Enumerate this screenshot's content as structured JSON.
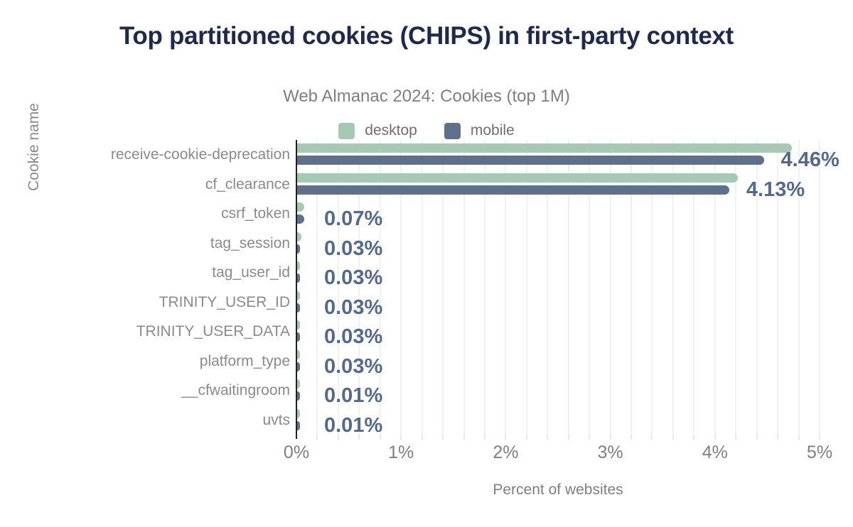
{
  "chart_data": {
    "type": "bar",
    "orientation": "horizontal",
    "title": "Top partitioned cookies (CHIPS) in first-party context",
    "subtitle": "Web Almanac 2024: Cookies (top 1M)",
    "xlabel": "Percent of websites",
    "ylabel": "Cookie name",
    "xlim": [
      0,
      5
    ],
    "x_ticks": [
      "0%",
      "1%",
      "2%",
      "3%",
      "4%",
      "5%"
    ],
    "minor_grid_step_pct": 0.2,
    "grid": true,
    "legend_position": "top-center",
    "legend": [
      {
        "name": "desktop",
        "color": "#a6c9b5"
      },
      {
        "name": "mobile",
        "color": "#5e708a"
      }
    ],
    "categories": [
      "receive-cookie-deprecation",
      "cf_clearance",
      "csrf_token",
      "tag_session",
      "tag_user_id",
      "TRINITY_USER_ID",
      "TRINITY_USER_DATA",
      "platform_type",
      "__cfwaitingroom",
      "uvts"
    ],
    "series": [
      {
        "name": "desktop",
        "values": [
          4.73,
          4.21,
          0.07,
          0.04,
          0.03,
          0.03,
          0.03,
          0.03,
          0.01,
          0.01
        ]
      },
      {
        "name": "mobile",
        "values": [
          4.46,
          4.13,
          0.07,
          0.03,
          0.03,
          0.03,
          0.03,
          0.03,
          0.01,
          0.01
        ]
      }
    ],
    "value_labels": [
      "4.46%",
      "4.13%",
      "0.07%",
      "0.03%",
      "0.03%",
      "0.03%",
      "0.03%",
      "0.03%",
      "0.01%",
      "0.01%"
    ]
  },
  "colors": {
    "title": "#1e2a4d",
    "subtitle": "#7f7f7f",
    "row_label": "#8a8a8a",
    "value_label": "#54698c",
    "desktop_bar": "#a6c9b5",
    "mobile_bar": "#5e708a",
    "axis_line": "#212121",
    "gridline": "#f1f1f4"
  }
}
